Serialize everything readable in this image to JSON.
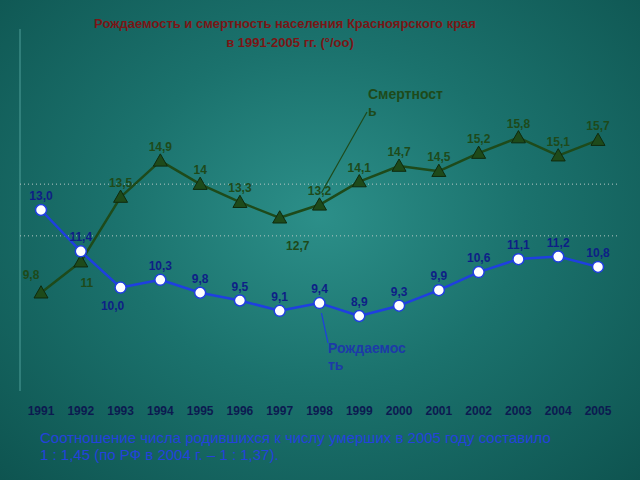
{
  "chart_data": {
    "type": "line",
    "title": "Рождаемость и смертность населения Красноярского края",
    "subtitle": "в 1991-2005 гг. (°/оо)",
    "categories": [
      "1991",
      "1992",
      "1993",
      "1994",
      "1995",
      "1996",
      "1997",
      "1998",
      "1999",
      "2000",
      "2001",
      "2002",
      "2003",
      "2004",
      "2005"
    ],
    "series": [
      {
        "name": "Смертность",
        "color": "#1e4a1a",
        "marker": "triangle",
        "values": [
          9.8,
          11,
          13.5,
          14.9,
          14,
          13.3,
          12.7,
          13.2,
          14.1,
          14.7,
          14.5,
          15.2,
          15.8,
          15.1,
          15.7
        ],
        "value_labels": [
          "9,8",
          "11",
          "13,5",
          "14,9",
          "14",
          "13,3",
          "12,7",
          "13,2",
          "14,1",
          "14,7",
          "14,5",
          "15,2",
          "15,8",
          "15,1",
          "15,7"
        ]
      },
      {
        "name": "Рождаемость",
        "color": "#1f3fe0",
        "marker": "circle",
        "values": [
          13.0,
          11.4,
          10.0,
          10.3,
          9.8,
          9.5,
          9.1,
          9.4,
          8.9,
          9.3,
          9.9,
          10.6,
          11.1,
          11.2,
          10.8
        ],
        "value_labels": [
          "13,0",
          "11,4",
          "10,0",
          "10,3",
          "9,8",
          "9,5",
          "9,1",
          "9,4",
          "8,9",
          "9,3",
          "9,9",
          "10,6",
          "11,1",
          "11,2",
          "10,8"
        ]
      }
    ],
    "ylim": [
      6,
      20
    ],
    "yticks": [
      12,
      14
    ],
    "grid": true,
    "tick_labels": "x",
    "data_labels": true,
    "annotations": [
      "Соотношение числа родившихся к числу умерших в 2005 году составило 1 : 1,45 (по РФ в 2004 г. – 1 : 1,37)."
    ]
  }
}
